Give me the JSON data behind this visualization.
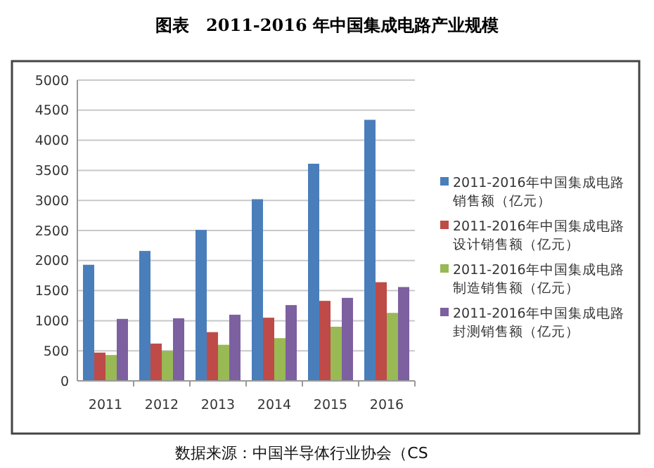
{
  "chart_data": {
    "type": "bar",
    "title": "图表　2011-2016 年中国集成电路产业规模",
    "categories": [
      "2011",
      "2012",
      "2013",
      "2014",
      "2015",
      "2016"
    ],
    "series": [
      {
        "name": "2011-2016年中国集成电路销售额（亿元）",
        "color": "#4a7ebb",
        "values": [
          1930,
          2160,
          2510,
          3020,
          3610,
          4340
        ]
      },
      {
        "name": "2011-2016年中国集成电路设计销售额（亿元）",
        "color": "#be4b48",
        "values": [
          470,
          620,
          810,
          1050,
          1330,
          1640
        ]
      },
      {
        "name": "2011-2016年中国集成电路制造销售额（亿元）",
        "color": "#98b954",
        "values": [
          430,
          500,
          600,
          710,
          900,
          1130
        ]
      },
      {
        "name": "2011-2016年中国集成电路封测销售额（亿元）",
        "color": "#7d60a0",
        "values": [
          1030,
          1040,
          1100,
          1260,
          1380,
          1560
        ]
      }
    ],
    "ylim": [
      0,
      5000
    ],
    "yticks": [
      0,
      500,
      1000,
      1500,
      2000,
      2500,
      3000,
      3500,
      4000,
      4500,
      5000
    ],
    "grid": "y",
    "legend": "right",
    "annotations": [
      "数据来源：中国半导体行业协会（CS"
    ]
  }
}
